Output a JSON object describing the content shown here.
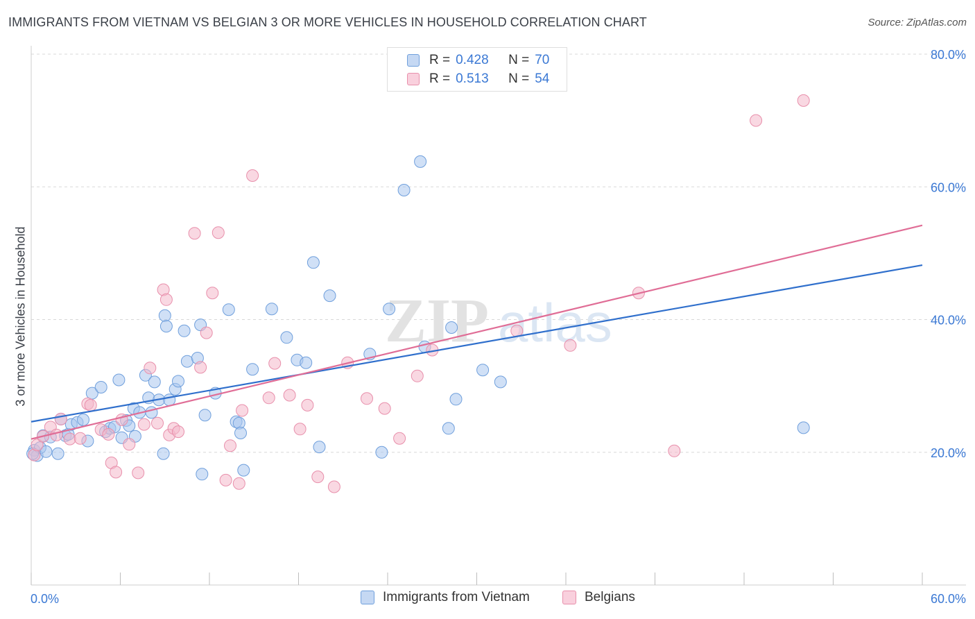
{
  "header": {
    "title": "IMMIGRANTS FROM VIETNAM VS BELGIAN 3 OR MORE VEHICLES IN HOUSEHOLD CORRELATION CHART",
    "source": "Source: ZipAtlas.com"
  },
  "watermark": {
    "zip": "ZIP",
    "atlas": "atlas"
  },
  "stats_legend": {
    "rows": [
      {
        "r_label": "R =",
        "r_value": "0.428",
        "n_label": "N =",
        "n_value": "70"
      },
      {
        "r_label": "R =",
        "r_value": "0.513",
        "n_label": "N =",
        "n_value": "54"
      }
    ]
  },
  "bottom_legend": {
    "items": [
      {
        "label": "Immigrants from Vietnam"
      },
      {
        "label": "Belgians"
      }
    ]
  },
  "colors": {
    "blue_fill": "#a9c6ef",
    "blue_stroke": "#6f9fdc",
    "blue_line": "#2f6fcc",
    "pink_fill": "#f4b8cb",
    "pink_stroke": "#e88fab",
    "pink_line": "#e06d96",
    "axis_label": "#3a78d4",
    "grid": "#d8d8d8"
  },
  "chart_data": {
    "type": "scatter",
    "title": "IMMIGRANTS FROM VIETNAM VS BELGIAN 3 OR MORE VEHICLES IN HOUSEHOLD CORRELATION CHART",
    "xlabel": "",
    "ylabel": "3 or more Vehicles in Household",
    "xlim": [
      0,
      60
    ],
    "ylim": [
      0,
      80
    ],
    "x_tick_labels": [
      "0.0%",
      "60.0%"
    ],
    "y_ticks": [
      20,
      40,
      60,
      80
    ],
    "y_tick_labels": [
      "20.0%",
      "40.0%",
      "60.0%",
      "80.0%"
    ],
    "grid": "horizontal dashed",
    "legend_position": "bottom-center",
    "series": [
      {
        "name": "Immigrants from Vietnam",
        "color": "#a9c6ef",
        "trend": {
          "x": [
            0,
            60
          ],
          "y": [
            24.6,
            48.2
          ]
        },
        "points": [
          [
            0.2,
            20.3
          ],
          [
            0.4,
            19.5
          ],
          [
            0.6,
            20.7
          ],
          [
            0.8,
            22.5
          ],
          [
            1.0,
            20.1
          ],
          [
            1.3,
            22.3
          ],
          [
            1.8,
            19.8
          ],
          [
            2.0,
            25.0
          ],
          [
            2.3,
            22.5
          ],
          [
            2.5,
            22.7
          ],
          [
            2.7,
            24.2
          ],
          [
            3.1,
            24.5
          ],
          [
            3.5,
            24.9
          ],
          [
            3.8,
            21.7
          ],
          [
            4.1,
            28.9
          ],
          [
            4.7,
            29.8
          ],
          [
            5.0,
            23.1
          ],
          [
            5.3,
            23.6
          ],
          [
            5.6,
            23.8
          ],
          [
            5.9,
            30.9
          ],
          [
            6.1,
            22.2
          ],
          [
            6.4,
            24.8
          ],
          [
            6.6,
            24.0
          ],
          [
            6.9,
            26.6
          ],
          [
            7.0,
            22.4
          ],
          [
            7.3,
            26.0
          ],
          [
            7.7,
            31.6
          ],
          [
            7.9,
            28.2
          ],
          [
            8.1,
            26.0
          ],
          [
            8.3,
            30.6
          ],
          [
            8.6,
            27.9
          ],
          [
            8.9,
            19.8
          ],
          [
            9.0,
            40.6
          ],
          [
            9.1,
            39.0
          ],
          [
            9.3,
            27.9
          ],
          [
            9.7,
            29.5
          ],
          [
            9.9,
            30.7
          ],
          [
            10.3,
            38.3
          ],
          [
            10.5,
            33.7
          ],
          [
            11.2,
            34.2
          ],
          [
            11.4,
            39.2
          ],
          [
            11.5,
            16.7
          ],
          [
            11.7,
            25.6
          ],
          [
            12.4,
            28.9
          ],
          [
            13.3,
            41.5
          ],
          [
            13.8,
            24.6
          ],
          [
            14.0,
            24.4
          ],
          [
            14.1,
            22.9
          ],
          [
            14.3,
            17.3
          ],
          [
            14.9,
            32.5
          ],
          [
            16.2,
            41.6
          ],
          [
            17.2,
            37.3
          ],
          [
            17.9,
            33.9
          ],
          [
            18.5,
            33.5
          ],
          [
            19.0,
            48.6
          ],
          [
            19.4,
            20.8
          ],
          [
            20.1,
            43.6
          ],
          [
            22.8,
            34.8
          ],
          [
            23.6,
            20.0
          ],
          [
            24.1,
            41.6
          ],
          [
            25.1,
            59.5
          ],
          [
            26.2,
            63.8
          ],
          [
            26.5,
            35.9
          ],
          [
            28.1,
            23.6
          ],
          [
            28.3,
            38.8
          ],
          [
            28.6,
            28.0
          ],
          [
            30.4,
            32.4
          ],
          [
            31.6,
            30.6
          ],
          [
            52.0,
            23.7
          ],
          [
            0.1,
            19.8
          ]
        ]
      },
      {
        "name": "Belgians",
        "color": "#f4b8cb",
        "trend": {
          "x": [
            0,
            60
          ],
          "y": [
            22.0,
            54.2
          ]
        },
        "points": [
          [
            0.2,
            19.6
          ],
          [
            0.4,
            21.1
          ],
          [
            0.8,
            22.4
          ],
          [
            1.3,
            23.8
          ],
          [
            1.7,
            22.6
          ],
          [
            2.0,
            25.0
          ],
          [
            2.6,
            22.0
          ],
          [
            3.3,
            22.1
          ],
          [
            3.8,
            27.3
          ],
          [
            4.0,
            27.1
          ],
          [
            4.7,
            23.4
          ],
          [
            5.2,
            22.7
          ],
          [
            5.4,
            18.4
          ],
          [
            5.7,
            17.0
          ],
          [
            6.1,
            24.9
          ],
          [
            6.6,
            21.2
          ],
          [
            7.2,
            16.9
          ],
          [
            7.6,
            24.2
          ],
          [
            8.0,
            32.7
          ],
          [
            8.5,
            24.4
          ],
          [
            8.9,
            44.5
          ],
          [
            9.1,
            43.0
          ],
          [
            9.3,
            22.6
          ],
          [
            9.6,
            23.6
          ],
          [
            9.9,
            23.1
          ],
          [
            11.0,
            53.0
          ],
          [
            11.4,
            32.8
          ],
          [
            11.8,
            38.0
          ],
          [
            12.2,
            44.0
          ],
          [
            12.6,
            53.1
          ],
          [
            13.1,
            15.8
          ],
          [
            13.4,
            21.0
          ],
          [
            14.0,
            15.3
          ],
          [
            14.2,
            26.3
          ],
          [
            14.9,
            61.7
          ],
          [
            16.0,
            28.2
          ],
          [
            16.4,
            33.4
          ],
          [
            17.4,
            28.6
          ],
          [
            18.1,
            23.5
          ],
          [
            18.6,
            27.1
          ],
          [
            19.3,
            16.3
          ],
          [
            20.4,
            14.8
          ],
          [
            21.3,
            33.5
          ],
          [
            22.6,
            28.1
          ],
          [
            23.8,
            26.6
          ],
          [
            24.8,
            22.1
          ],
          [
            26.0,
            31.5
          ],
          [
            27.0,
            35.4
          ],
          [
            32.7,
            38.3
          ],
          [
            36.3,
            36.1
          ],
          [
            40.9,
            44.0
          ],
          [
            43.3,
            20.2
          ],
          [
            48.8,
            70.0
          ],
          [
            52.0,
            73.0
          ]
        ]
      }
    ]
  }
}
